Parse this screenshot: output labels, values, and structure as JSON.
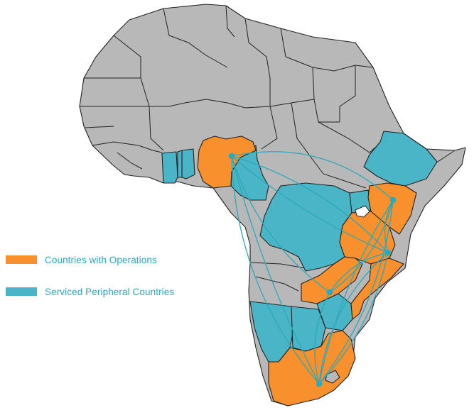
{
  "colors": {
    "operations": "#f7902d",
    "serviced": "#4ab5c6",
    "other": "#b8b8b9",
    "border": "#222222",
    "routes": "#2aa9bd",
    "legend_text": "#2aa9bd"
  },
  "legend": {
    "operations_label": "Countries with Operations",
    "serviced_label": "Serviced Peripheral Countries"
  }
}
